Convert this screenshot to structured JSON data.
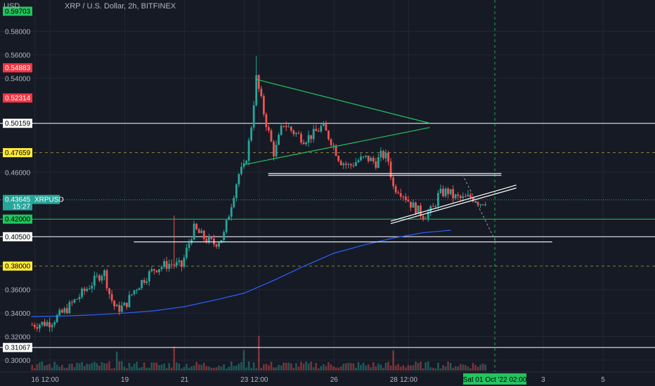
{
  "chart_data": {
    "type": "candlestick",
    "title": "XRP / U.S. Dollar, 2h, BITFINEX",
    "currency_label": "USD",
    "ylim": [
      0.292,
      0.618
    ],
    "y_ticks": [
      {
        "value": 0.58,
        "label": "0.58000"
      },
      {
        "value": 0.56,
        "label": "0.56000"
      },
      {
        "value": 0.54,
        "label": "0.54000"
      },
      {
        "value": 0.46,
        "label": "0.46000"
      },
      {
        "value": 0.36,
        "label": "0.36000"
      },
      {
        "value": 0.34,
        "label": "0.34000"
      },
      {
        "value": 0.32,
        "label": "0.32000"
      },
      {
        "value": 0.3,
        "label": "0.30000"
      }
    ],
    "x_ticks": [
      {
        "day": 16,
        "label": "16"
      },
      {
        "day": 16.5,
        "label": "12:00"
      },
      {
        "day": 19,
        "label": "19"
      },
      {
        "day": 21,
        "label": "21"
      },
      {
        "day": 23,
        "label": "23"
      },
      {
        "day": 23.5,
        "label": "12:00"
      },
      {
        "day": 26,
        "label": "26"
      },
      {
        "day": 28,
        "label": "28"
      },
      {
        "day": 28.5,
        "label": "12:00"
      },
      {
        "day": 33,
        "label": "3"
      },
      {
        "day": 35,
        "label": "5"
      }
    ],
    "x_range_days": [
      15.87,
      35.95
    ],
    "price_levels": [
      {
        "value": 0.59703,
        "label": "0.59703",
        "color": "#22c55e",
        "line": false
      },
      {
        "value": 0.54883,
        "label": "0.54883",
        "color": "#f23645",
        "line": false
      },
      {
        "value": 0.52314,
        "label": "0.52314",
        "color": "#f23645",
        "line": false
      },
      {
        "value": 0.50159,
        "label": "0.50159",
        "color": "#ffffff",
        "line": true,
        "style": "solid"
      },
      {
        "value": 0.47659,
        "label": "0.47659",
        "color": "#ffeb3b",
        "line": true,
        "style": "dashed"
      },
      {
        "value": 0.42,
        "label": "0.42000",
        "color": "#22c55e",
        "line": true,
        "style": "solid"
      },
      {
        "value": 0.405,
        "label": "0.40500",
        "color": "#ffffff",
        "line": true,
        "style": "solid"
      },
      {
        "value": 0.38,
        "label": "0.38000",
        "color": "#ffeb3b",
        "line": true,
        "style": "dashed"
      },
      {
        "value": 0.31067,
        "label": "0.31067",
        "color": "#ffffff",
        "line": true,
        "style": "solid"
      }
    ],
    "current_price": {
      "value": 0.43645,
      "label": "0.43645",
      "countdown": "15:27",
      "symbol": "XRPUSD",
      "color": "#26a69a"
    },
    "vertical_marker": {
      "day": 31.38,
      "label": "Sat 01 Oct '22  02:00"
    },
    "trend_lines": [
      {
        "name": "triangle-upper",
        "color": "#22c55e",
        "x": [
          23.4,
          29.2
        ],
        "y": [
          0.539,
          0.5017
        ]
      },
      {
        "name": "triangle-lower",
        "color": "#22c55e",
        "x": [
          23.0,
          29.2
        ],
        "y": [
          0.4664,
          0.498
        ]
      },
      {
        "name": "support-horizontal-upper",
        "color": "#ffffff",
        "x": [
          23.8,
          31.6
        ],
        "y": [
          0.4588,
          0.4588
        ]
      },
      {
        "name": "support-horizontal-lower",
        "color": "#ffffff",
        "x": [
          23.8,
          31.6
        ],
        "y": [
          0.4573,
          0.4573
        ]
      },
      {
        "name": "rising-channel-upper",
        "color": "#ffffff",
        "x": [
          27.9,
          32.1
        ],
        "y": [
          0.4183,
          0.449
        ]
      },
      {
        "name": "rising-channel-lower",
        "color": "#ffffff",
        "x": [
          27.9,
          32.1
        ],
        "y": [
          0.4162,
          0.4465
        ]
      },
      {
        "name": "horizontal-support-long",
        "color": "#ffffff",
        "x": [
          19.3,
          33.3
        ],
        "y": [
          0.4006,
          0.4006
        ]
      }
    ],
    "projection_line": {
      "color": "#9598a1",
      "x": [
        30.3,
        31.4
      ],
      "y": [
        0.458,
        0.4015
      ]
    },
    "moving_average": {
      "color": "#2962ff",
      "x": [
        15.87,
        17,
        18,
        19,
        20,
        21,
        22,
        23,
        24,
        25,
        26,
        27,
        28,
        29,
        29.9
      ],
      "y": [
        0.337,
        0.3375,
        0.3385,
        0.34,
        0.342,
        0.3455,
        0.351,
        0.357,
        0.368,
        0.38,
        0.391,
        0.398,
        0.404,
        0.4085,
        0.4105
      ]
    },
    "price_path": {
      "day": [
        15.9,
        16.5,
        17.0,
        17.5,
        18.0,
        18.3,
        18.5,
        18.7,
        19.0,
        19.3,
        19.6,
        20.0,
        20.5,
        20.9,
        21.3,
        21.7,
        22.0,
        22.3,
        22.6,
        22.8,
        23.0,
        23.2,
        23.4,
        23.7,
        24.0,
        24.3,
        24.6,
        25.0,
        25.3,
        25.6,
        25.9,
        26.2,
        26.5,
        26.8,
        27.1,
        27.4,
        27.6,
        27.8,
        28.0,
        28.1,
        28.3,
        28.6,
        29.0,
        29.3,
        29.5,
        29.8,
        30.0,
        30.3,
        30.6,
        30.9,
        31.1
      ],
      "close": [
        0.33,
        0.332,
        0.342,
        0.355,
        0.368,
        0.376,
        0.355,
        0.343,
        0.346,
        0.359,
        0.368,
        0.378,
        0.382,
        0.38,
        0.412,
        0.403,
        0.399,
        0.405,
        0.437,
        0.458,
        0.464,
        0.492,
        0.54,
        0.505,
        0.475,
        0.502,
        0.495,
        0.488,
        0.492,
        0.499,
        0.487,
        0.47,
        0.465,
        0.47,
        0.472,
        0.468,
        0.475,
        0.472,
        0.445,
        0.447,
        0.442,
        0.432,
        0.423,
        0.428,
        0.441,
        0.444,
        0.439,
        0.437,
        0.439,
        0.434,
        0.4365
      ]
    },
    "volume_spikes": [
      {
        "day": 20.65,
        "value": 0.38
      },
      {
        "day": 23.0,
        "value": 0.32
      },
      {
        "day": 28.0,
        "value": 0.32
      },
      {
        "day": 23.5,
        "value": 0.55
      },
      {
        "day": 18.7,
        "value": 0.3
      }
    ]
  }
}
